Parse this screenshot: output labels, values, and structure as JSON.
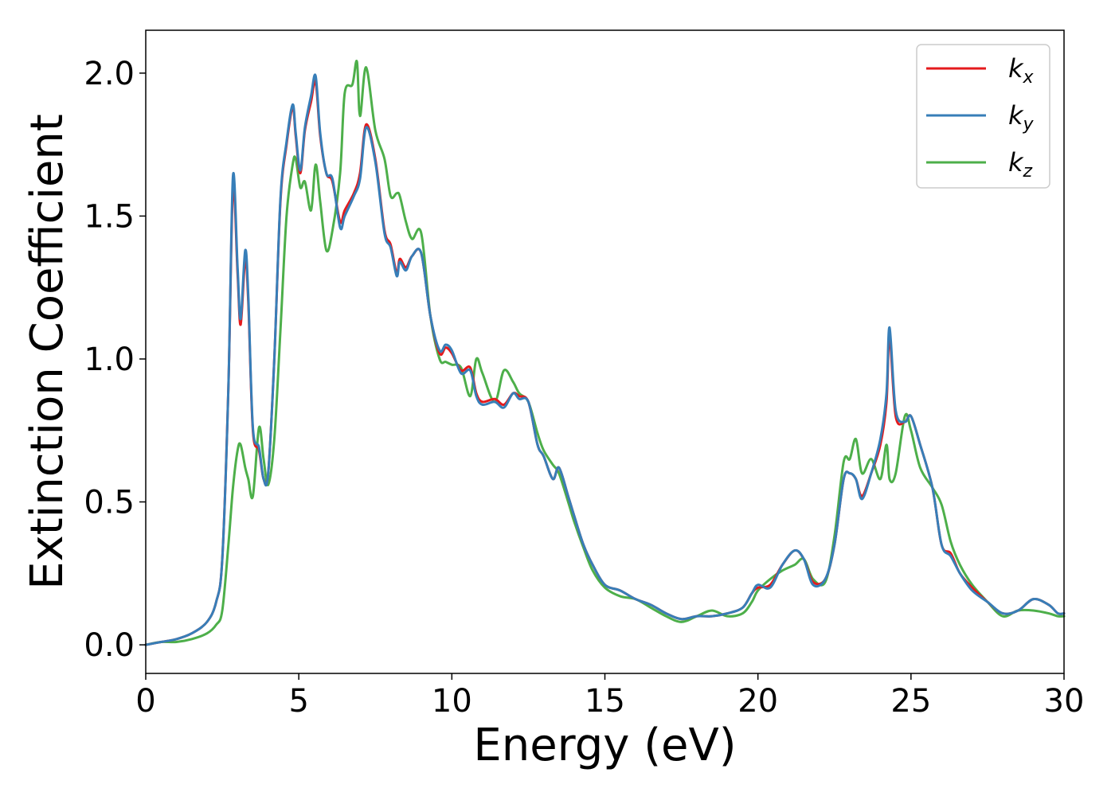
{
  "chart_data": {
    "type": "line",
    "xlabel": "Energy (eV)",
    "ylabel": "Extinction Coefficient",
    "xlim": [
      0,
      30
    ],
    "ylim": [
      -0.1,
      2.15
    ],
    "xticks": [
      0,
      5,
      10,
      15,
      20,
      25,
      30
    ],
    "xtick_labels": [
      "0",
      "5",
      "10",
      "15",
      "20",
      "25",
      "30"
    ],
    "yticks": [
      0.0,
      0.5,
      1.0,
      1.5,
      2.0
    ],
    "ytick_labels": [
      "0.0",
      "0.5",
      "1.0",
      "1.5",
      "2.0"
    ],
    "grid": false,
    "legend_position": "top-right",
    "series": [
      {
        "name": "k",
        "subscript": "x",
        "color": "#e41a1c",
        "x": [
          0,
          0.5,
          1.0,
          1.5,
          2.0,
          2.3,
          2.5,
          2.7,
          2.85,
          3.0,
          3.1,
          3.25,
          3.35,
          3.5,
          3.7,
          3.85,
          4.0,
          4.2,
          4.4,
          4.6,
          4.8,
          4.9,
          5.05,
          5.2,
          5.4,
          5.55,
          5.7,
          5.9,
          6.1,
          6.35,
          6.5,
          6.8,
          7.0,
          7.2,
          7.5,
          7.8,
          8.0,
          8.2,
          8.3,
          8.5,
          8.7,
          9.0,
          9.3,
          9.6,
          9.8,
          10.0,
          10.3,
          10.6,
          10.8,
          11.0,
          11.4,
          11.7,
          12.0,
          12.2,
          12.5,
          12.8,
          13.0,
          13.3,
          13.5,
          13.8,
          14.0,
          14.3,
          14.6,
          15.0,
          15.5,
          16.0,
          16.5,
          17.0,
          17.5,
          18.0,
          18.5,
          19.0,
          19.5,
          19.8,
          20.0,
          20.4,
          20.8,
          21.2,
          21.5,
          21.8,
          22.2,
          22.5,
          22.8,
          23.0,
          23.2,
          23.4,
          23.7,
          24.0,
          24.2,
          24.3,
          24.5,
          24.8,
          25.0,
          25.3,
          25.7,
          26.0,
          26.3,
          26.6,
          27.0,
          27.5,
          28.0,
          28.5,
          29.0,
          29.5,
          29.8,
          30.0
        ],
        "values": [
          0.0,
          0.01,
          0.02,
          0.04,
          0.08,
          0.15,
          0.3,
          0.9,
          1.6,
          1.3,
          1.12,
          1.35,
          1.2,
          0.75,
          0.68,
          0.58,
          0.6,
          1.0,
          1.55,
          1.75,
          1.88,
          1.78,
          1.65,
          1.8,
          1.9,
          1.97,
          1.78,
          1.65,
          1.62,
          1.48,
          1.52,
          1.58,
          1.65,
          1.82,
          1.7,
          1.45,
          1.4,
          1.3,
          1.35,
          1.32,
          1.36,
          1.37,
          1.15,
          1.02,
          1.04,
          1.02,
          0.96,
          0.97,
          0.88,
          0.85,
          0.86,
          0.84,
          0.88,
          0.87,
          0.85,
          0.7,
          0.66,
          0.58,
          0.62,
          0.52,
          0.45,
          0.35,
          0.28,
          0.21,
          0.19,
          0.16,
          0.14,
          0.11,
          0.09,
          0.1,
          0.1,
          0.11,
          0.13,
          0.18,
          0.2,
          0.21,
          0.28,
          0.33,
          0.3,
          0.22,
          0.23,
          0.35,
          0.58,
          0.6,
          0.58,
          0.52,
          0.6,
          0.7,
          0.85,
          1.08,
          0.8,
          0.78,
          0.8,
          0.7,
          0.55,
          0.35,
          0.32,
          0.25,
          0.2,
          0.15,
          0.11,
          0.12,
          0.16,
          0.14,
          0.11,
          0.11
        ]
      },
      {
        "name": "k",
        "subscript": "y",
        "color": "#377eb8",
        "x": [
          0,
          0.5,
          1.0,
          1.5,
          2.0,
          2.3,
          2.5,
          2.7,
          2.85,
          3.0,
          3.1,
          3.25,
          3.35,
          3.5,
          3.7,
          3.85,
          4.0,
          4.2,
          4.4,
          4.6,
          4.8,
          4.9,
          5.05,
          5.2,
          5.4,
          5.55,
          5.7,
          5.9,
          6.1,
          6.35,
          6.5,
          6.8,
          7.0,
          7.2,
          7.5,
          7.8,
          8.0,
          8.2,
          8.3,
          8.5,
          8.7,
          9.0,
          9.3,
          9.6,
          9.8,
          10.0,
          10.3,
          10.6,
          10.8,
          11.0,
          11.4,
          11.7,
          12.0,
          12.2,
          12.5,
          12.8,
          13.0,
          13.3,
          13.5,
          13.8,
          14.0,
          14.3,
          14.6,
          15.0,
          15.5,
          16.0,
          16.5,
          17.0,
          17.5,
          18.0,
          18.5,
          19.0,
          19.5,
          19.8,
          20.0,
          20.4,
          20.8,
          21.2,
          21.5,
          21.8,
          22.2,
          22.5,
          22.8,
          23.0,
          23.2,
          23.4,
          23.7,
          24.0,
          24.2,
          24.3,
          24.5,
          24.8,
          25.0,
          25.3,
          25.7,
          26.0,
          26.3,
          26.6,
          27.0,
          27.5,
          28.0,
          28.5,
          29.0,
          29.5,
          29.8,
          30.0
        ],
        "values": [
          0.0,
          0.01,
          0.02,
          0.04,
          0.08,
          0.15,
          0.3,
          0.9,
          1.64,
          1.32,
          1.14,
          1.38,
          1.22,
          0.76,
          0.69,
          0.58,
          0.6,
          1.0,
          1.56,
          1.76,
          1.89,
          1.79,
          1.66,
          1.81,
          1.92,
          1.99,
          1.79,
          1.65,
          1.63,
          1.46,
          1.5,
          1.57,
          1.63,
          1.81,
          1.69,
          1.44,
          1.39,
          1.29,
          1.34,
          1.31,
          1.36,
          1.37,
          1.15,
          1.03,
          1.05,
          1.03,
          0.95,
          0.96,
          0.87,
          0.84,
          0.85,
          0.83,
          0.88,
          0.86,
          0.85,
          0.7,
          0.66,
          0.58,
          0.62,
          0.52,
          0.45,
          0.35,
          0.28,
          0.21,
          0.19,
          0.16,
          0.14,
          0.11,
          0.09,
          0.1,
          0.1,
          0.11,
          0.13,
          0.18,
          0.21,
          0.2,
          0.28,
          0.33,
          0.3,
          0.21,
          0.23,
          0.35,
          0.58,
          0.6,
          0.58,
          0.51,
          0.6,
          0.72,
          0.88,
          1.11,
          0.82,
          0.78,
          0.8,
          0.7,
          0.55,
          0.35,
          0.31,
          0.25,
          0.19,
          0.15,
          0.11,
          0.12,
          0.16,
          0.14,
          0.11,
          0.11
        ]
      },
      {
        "name": "k",
        "subscript": "z",
        "color": "#4daf4a",
        "x": [
          0,
          0.5,
          1.0,
          1.5,
          2.0,
          2.3,
          2.5,
          2.7,
          2.85,
          3.0,
          3.1,
          3.25,
          3.35,
          3.5,
          3.7,
          3.85,
          4.0,
          4.2,
          4.4,
          4.6,
          4.8,
          4.9,
          5.05,
          5.2,
          5.4,
          5.55,
          5.7,
          5.9,
          6.1,
          6.35,
          6.5,
          6.75,
          6.9,
          7.0,
          7.2,
          7.5,
          7.8,
          8.0,
          8.2,
          8.3,
          8.5,
          8.7,
          9.0,
          9.3,
          9.6,
          9.8,
          10.0,
          10.3,
          10.6,
          10.8,
          11.0,
          11.4,
          11.7,
          12.0,
          12.2,
          12.5,
          12.8,
          13.0,
          13.3,
          13.5,
          13.8,
          14.0,
          14.3,
          14.6,
          15.0,
          15.5,
          16.0,
          16.5,
          17.0,
          17.5,
          18.0,
          18.5,
          19.0,
          19.5,
          19.8,
          20.0,
          20.4,
          20.8,
          21.2,
          21.5,
          21.8,
          22.2,
          22.5,
          22.8,
          23.0,
          23.2,
          23.4,
          23.7,
          24.0,
          24.2,
          24.3,
          24.5,
          24.8,
          25.0,
          25.3,
          25.7,
          26.0,
          26.3,
          26.6,
          27.0,
          27.5,
          28.0,
          28.5,
          29.0,
          29.5,
          29.8,
          30.0
        ],
        "values": [
          0.0,
          0.01,
          0.01,
          0.02,
          0.04,
          0.07,
          0.12,
          0.35,
          0.55,
          0.68,
          0.7,
          0.62,
          0.58,
          0.52,
          0.76,
          0.65,
          0.56,
          0.72,
          1.1,
          1.5,
          1.68,
          1.7,
          1.6,
          1.62,
          1.52,
          1.68,
          1.55,
          1.38,
          1.45,
          1.65,
          1.93,
          1.96,
          2.04,
          1.85,
          2.02,
          1.8,
          1.7,
          1.57,
          1.58,
          1.57,
          1.48,
          1.42,
          1.44,
          1.15,
          1.0,
          0.99,
          0.98,
          0.97,
          0.87,
          1.0,
          0.95,
          0.85,
          0.96,
          0.92,
          0.88,
          0.85,
          0.74,
          0.68,
          0.63,
          0.6,
          0.5,
          0.43,
          0.34,
          0.26,
          0.2,
          0.17,
          0.16,
          0.13,
          0.1,
          0.08,
          0.1,
          0.12,
          0.1,
          0.11,
          0.15,
          0.19,
          0.23,
          0.26,
          0.28,
          0.3,
          0.23,
          0.22,
          0.38,
          0.64,
          0.65,
          0.72,
          0.6,
          0.65,
          0.58,
          0.7,
          0.58,
          0.6,
          0.8,
          0.75,
          0.62,
          0.55,
          0.49,
          0.36,
          0.28,
          0.21,
          0.15,
          0.1,
          0.12,
          0.12,
          0.11,
          0.1,
          0.1
        ]
      }
    ]
  }
}
